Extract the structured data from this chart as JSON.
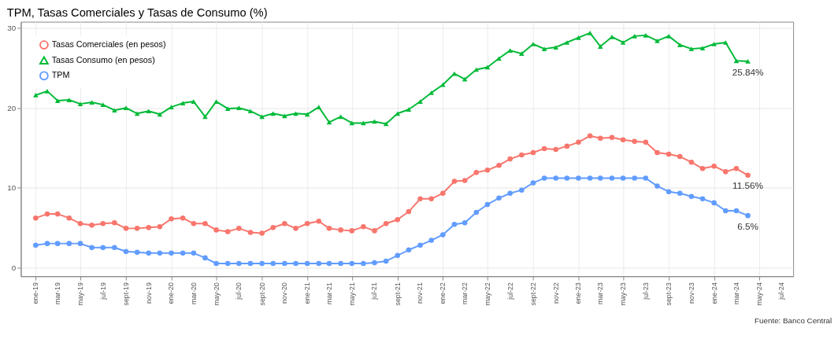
{
  "chart_data": {
    "type": "line",
    "title": "TPM, Tasas Comerciales y Tasas de Consumo (%)",
    "x": [
      "2019-01",
      "2019-02",
      "2019-03",
      "2019-04",
      "2019-05",
      "2019-06",
      "2019-07",
      "2019-08",
      "2019-09",
      "2019-10",
      "2019-11",
      "2019-12",
      "2020-01",
      "2020-02",
      "2020-03",
      "2020-04",
      "2020-05",
      "2020-06",
      "2020-07",
      "2020-08",
      "2020-09",
      "2020-10",
      "2020-11",
      "2020-12",
      "2021-01",
      "2021-02",
      "2021-03",
      "2021-04",
      "2021-05",
      "2021-06",
      "2021-07",
      "2021-08",
      "2021-09",
      "2021-10",
      "2021-11",
      "2021-12",
      "2022-01",
      "2022-02",
      "2022-03",
      "2022-04",
      "2022-05",
      "2022-06",
      "2022-07",
      "2022-08",
      "2022-09",
      "2022-10",
      "2022-11",
      "2022-12",
      "2023-01",
      "2023-02",
      "2023-03",
      "2023-04",
      "2023-05",
      "2023-06",
      "2023-07",
      "2023-08",
      "2023-09",
      "2023-10",
      "2023-11",
      "2023-12",
      "2024-01",
      "2024-02",
      "2024-03",
      "2024-04"
    ],
    "series": [
      {
        "name": "Tasas Comerciales (en pesos)",
        "color": "#f8766d",
        "marker": "circle",
        "values": [
          6.2,
          6.7,
          6.7,
          6.2,
          5.5,
          5.3,
          5.5,
          5.6,
          4.9,
          4.9,
          5.0,
          5.1,
          6.1,
          6.2,
          5.5,
          5.5,
          4.7,
          4.5,
          4.9,
          4.4,
          4.3,
          5.0,
          5.5,
          4.9,
          5.5,
          5.8,
          4.9,
          4.7,
          4.6,
          5.1,
          4.6,
          5.5,
          6.0,
          7.0,
          8.6,
          8.6,
          9.3,
          10.8,
          10.9,
          11.9,
          12.2,
          12.8,
          13.6,
          14.1,
          14.4,
          14.9,
          14.8,
          15.2,
          15.7,
          16.5,
          16.2,
          16.3,
          16.0,
          15.8,
          15.7,
          14.4,
          14.2,
          13.9,
          13.2,
          12.4,
          12.7,
          12.0,
          12.4,
          11.56
        ]
      },
      {
        "name": "Tasas Consumo (en pesos)",
        "color": "#00ba38",
        "marker": "triangle",
        "values": [
          21.6,
          22.1,
          20.9,
          21.0,
          20.5,
          20.7,
          20.4,
          19.7,
          20.0,
          19.3,
          19.6,
          19.2,
          20.1,
          20.6,
          20.8,
          18.9,
          20.8,
          19.9,
          20.0,
          19.6,
          18.9,
          19.3,
          19.0,
          19.3,
          19.2,
          20.1,
          18.2,
          18.9,
          18.1,
          18.1,
          18.3,
          18.0,
          19.3,
          19.8,
          20.8,
          21.9,
          22.9,
          24.3,
          23.6,
          24.8,
          25.1,
          26.2,
          27.2,
          26.8,
          28.0,
          27.4,
          27.6,
          28.2,
          28.8,
          29.4,
          27.7,
          28.9,
          28.2,
          29.0,
          29.1,
          28.4,
          29.0,
          27.9,
          27.4,
          27.5,
          28.0,
          28.2,
          25.9,
          25.84
        ]
      },
      {
        "name": "TPM",
        "color": "#619cff",
        "marker": "circle",
        "values": [
          2.8,
          3.0,
          3.0,
          3.0,
          3.0,
          2.5,
          2.5,
          2.5,
          2.0,
          1.9,
          1.8,
          1.8,
          1.8,
          1.8,
          1.8,
          1.2,
          0.5,
          0.5,
          0.5,
          0.5,
          0.5,
          0.5,
          0.5,
          0.5,
          0.5,
          0.5,
          0.5,
          0.5,
          0.5,
          0.5,
          0.6,
          0.8,
          1.5,
          2.2,
          2.8,
          3.4,
          4.1,
          5.4,
          5.6,
          6.9,
          7.9,
          8.7,
          9.3,
          9.7,
          10.6,
          11.2,
          11.2,
          11.2,
          11.2,
          11.2,
          11.2,
          11.2,
          11.2,
          11.2,
          11.2,
          10.2,
          9.5,
          9.3,
          8.9,
          8.6,
          8.1,
          7.1,
          7.1,
          6.5
        ]
      }
    ],
    "xlim": [
      "2018-11-22",
      "2024-08-01"
    ],
    "xticks": [
      {
        "value": "2019-01",
        "label": "ene-19"
      },
      {
        "value": "2019-03",
        "label": "mar-19"
      },
      {
        "value": "2019-05",
        "label": "may-19"
      },
      {
        "value": "2019-07",
        "label": "jul-19"
      },
      {
        "value": "2019-09",
        "label": "sept-19"
      },
      {
        "value": "2019-11",
        "label": "nov-19"
      },
      {
        "value": "2020-01",
        "label": "ene-20"
      },
      {
        "value": "2020-03",
        "label": "mar-20"
      },
      {
        "value": "2020-05",
        "label": "may-20"
      },
      {
        "value": "2020-07",
        "label": "jul-20"
      },
      {
        "value": "2020-09",
        "label": "sept-20"
      },
      {
        "value": "2020-11",
        "label": "nov-20"
      },
      {
        "value": "2021-01",
        "label": "ene-21"
      },
      {
        "value": "2021-03",
        "label": "mar-21"
      },
      {
        "value": "2021-05",
        "label": "may-21"
      },
      {
        "value": "2021-07",
        "label": "jul-21"
      },
      {
        "value": "2021-09",
        "label": "sept-21"
      },
      {
        "value": "2021-11",
        "label": "nov-21"
      },
      {
        "value": "2022-01",
        "label": "ene-22"
      },
      {
        "value": "2022-03",
        "label": "mar-22"
      },
      {
        "value": "2022-05",
        "label": "may-22"
      },
      {
        "value": "2022-07",
        "label": "jul-22"
      },
      {
        "value": "2022-09",
        "label": "sept-22"
      },
      {
        "value": "2022-11",
        "label": "nov-22"
      },
      {
        "value": "2023-01",
        "label": "ene-23"
      },
      {
        "value": "2023-03",
        "label": "mar-23"
      },
      {
        "value": "2023-05",
        "label": "may-23"
      },
      {
        "value": "2023-07",
        "label": "jul-23"
      },
      {
        "value": "2023-09",
        "label": "sept-23"
      },
      {
        "value": "2023-11",
        "label": "nov-23"
      },
      {
        "value": "2024-01",
        "label": "ene-24"
      },
      {
        "value": "2024-03",
        "label": "mar-24"
      },
      {
        "value": "2024-05",
        "label": "may-24"
      },
      {
        "value": "2024-07",
        "label": "jul-24"
      }
    ],
    "ylim": [
      -1.1,
      30.8
    ],
    "yticks": [
      0,
      10,
      20,
      30
    ],
    "grid": true,
    "legend": "top left",
    "annotations": [
      {
        "text": "25.84%",
        "x": "2024-04",
        "y": 25.84
      },
      {
        "text": "11.56%",
        "x": "2024-04",
        "y": 11.56
      },
      {
        "text": "6.5%",
        "x": "2024-04",
        "y": 6.5
      },
      "Fuente: Banco Central"
    ]
  }
}
